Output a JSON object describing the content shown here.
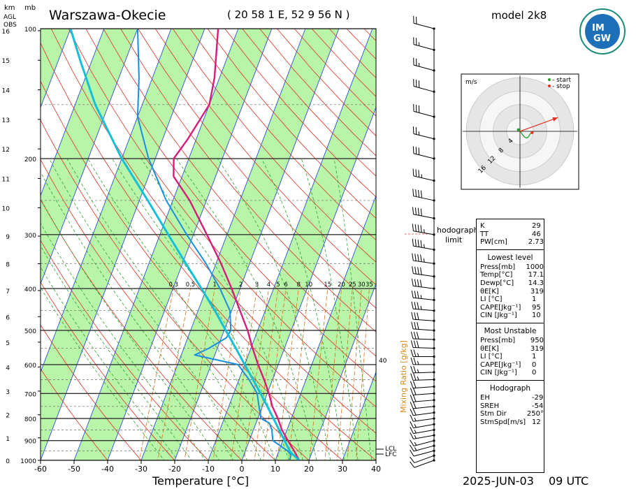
{
  "header": {
    "station": "Warszawa-Okecie",
    "coords": "( 20 58 1 E, 52 9 56 N )",
    "model": "model 2k8",
    "date": "2025-JUN-03",
    "time": "09 UTC",
    "logo_top": "IM",
    "logo_bottom": "GW"
  },
  "colors": {
    "temperature": "#d61c7a",
    "dewpoint": "#1a8fe0",
    "parcel": "#14c0d8",
    "isotherm": "#2b4fd6",
    "dry_adiabat": "#e03020",
    "moist_adiabat": "#2ca02c",
    "mixing_ratio": "#e07010",
    "band_fill": "#b8f5a8"
  },
  "chart_data": {
    "type": "line",
    "title": "",
    "xlabel": "Temperature [°C]",
    "ylabel_left_top": "km",
    "ylabel_left_sub": [
      "AGL",
      "OBS"
    ],
    "ylabel_right": "mb",
    "x_ticks": [
      "-60",
      "-50",
      "-40",
      "-30",
      "-20",
      "-10",
      "0",
      "10",
      "20",
      "30",
      "40"
    ],
    "x_tick_values": [
      -60,
      -50,
      -40,
      -30,
      -20,
      -10,
      0,
      10,
      20,
      30,
      40
    ],
    "pressure_labels": [
      "100",
      "200",
      "300",
      "400",
      "500",
      "600",
      "700",
      "800",
      "900",
      "1000"
    ],
    "pressure_values": [
      100,
      200,
      300,
      400,
      500,
      600,
      700,
      800,
      900,
      1000
    ],
    "km_labels": [
      "0",
      "1",
      "2",
      "3",
      "4",
      "5",
      "6",
      "7",
      "8",
      "9",
      "10",
      "11",
      "12",
      "13",
      "14",
      "15",
      "16"
    ],
    "mixing_ratio_label": "Mixing Ratio [g/kg]",
    "mixing_ratio_ticks": [
      "0.3",
      "0.5",
      "1",
      "2",
      "3",
      "4",
      "5",
      "6",
      "8",
      "10",
      "15",
      "20",
      "25",
      "30",
      "35"
    ],
    "mixing_ratio_values": [
      0.3,
      0.5,
      1,
      2,
      3,
      4,
      5,
      6,
      8,
      10,
      15,
      20,
      25,
      30,
      35
    ],
    "right_axis_value": "40",
    "lcl_label": "LCL",
    "lfc_label": "LFC",
    "series": [
      {
        "name": "temperature",
        "points": [
          [
            1000,
            17.1
          ],
          [
            950,
            14.5
          ],
          [
            900,
            11.5
          ],
          [
            850,
            8.5
          ],
          [
            800,
            6.0
          ],
          [
            750,
            3.0
          ],
          [
            700,
            0.5
          ],
          [
            650,
            -2.5
          ],
          [
            600,
            -6.0
          ],
          [
            550,
            -9.5
          ],
          [
            500,
            -13.0
          ],
          [
            450,
            -17.5
          ],
          [
            400,
            -22.5
          ],
          [
            350,
            -28.5
          ],
          [
            300,
            -36.0
          ],
          [
            250,
            -45.0
          ],
          [
            220,
            -52.5
          ],
          [
            200,
            -54.5
          ],
          [
            180,
            -52.5
          ],
          [
            150,
            -50.0
          ],
          [
            130,
            -51.5
          ],
          [
            100,
            -56.0
          ]
        ]
      },
      {
        "name": "dewpoint",
        "points": [
          [
            1000,
            14.3
          ],
          [
            970,
            14.0
          ],
          [
            950,
            12.5
          ],
          [
            900,
            7.0
          ],
          [
            850,
            5.5
          ],
          [
            820,
            4.0
          ],
          [
            800,
            1.0
          ],
          [
            750,
            -1.0
          ],
          [
            700,
            -3.0
          ],
          [
            650,
            -7.0
          ],
          [
            600,
            -12.0
          ],
          [
            570,
            -26.0
          ],
          [
            550,
            -22.5
          ],
          [
            520,
            -18.5
          ],
          [
            500,
            -18.0
          ],
          [
            450,
            -20.5
          ],
          [
            400,
            -26.0
          ],
          [
            350,
            -33.0
          ],
          [
            300,
            -42.0
          ],
          [
            250,
            -52.0
          ],
          [
            200,
            -62.0
          ],
          [
            160,
            -70.0
          ],
          [
            130,
            -74.0
          ],
          [
            100,
            -80.0
          ]
        ]
      },
      {
        "name": "parcel",
        "points": [
          [
            1000,
            17.1
          ],
          [
            960,
            13.8
          ],
          [
            950,
            13.2
          ],
          [
            900,
            10.5
          ],
          [
            850,
            7.7
          ],
          [
            800,
            4.7
          ],
          [
            750,
            1.5
          ],
          [
            700,
            -2.0
          ],
          [
            650,
            -5.8
          ],
          [
            600,
            -10.0
          ],
          [
            550,
            -14.5
          ],
          [
            500,
            -19.5
          ],
          [
            450,
            -25.0
          ],
          [
            400,
            -31.5
          ],
          [
            350,
            -39.0
          ],
          [
            300,
            -47.5
          ],
          [
            250,
            -57.5
          ],
          [
            200,
            -70.0
          ],
          [
            150,
            -84.0
          ],
          [
            120,
            -93.0
          ],
          [
            100,
            -100.0
          ]
        ]
      }
    ],
    "wind_barbs": [
      {
        "p": 1000,
        "dir": 250,
        "kt": 10
      },
      {
        "p": 975,
        "dir": 250,
        "kt": 12
      },
      {
        "p": 950,
        "dir": 255,
        "kt": 14
      },
      {
        "p": 925,
        "dir": 255,
        "kt": 15
      },
      {
        "p": 900,
        "dir": 255,
        "kt": 16
      },
      {
        "p": 875,
        "dir": 260,
        "kt": 17
      },
      {
        "p": 850,
        "dir": 260,
        "kt": 18
      },
      {
        "p": 825,
        "dir": 260,
        "kt": 18
      },
      {
        "p": 800,
        "dir": 262,
        "kt": 19
      },
      {
        "p": 775,
        "dir": 262,
        "kt": 20
      },
      {
        "p": 750,
        "dir": 264,
        "kt": 21
      },
      {
        "p": 725,
        "dir": 265,
        "kt": 22
      },
      {
        "p": 700,
        "dir": 266,
        "kt": 23
      },
      {
        "p": 675,
        "dir": 266,
        "kt": 24
      },
      {
        "p": 650,
        "dir": 268,
        "kt": 25
      },
      {
        "p": 625,
        "dir": 268,
        "kt": 26
      },
      {
        "p": 600,
        "dir": 270,
        "kt": 27
      },
      {
        "p": 575,
        "dir": 270,
        "kt": 28
      },
      {
        "p": 550,
        "dir": 272,
        "kt": 30
      },
      {
        "p": 525,
        "dir": 272,
        "kt": 31
      },
      {
        "p": 500,
        "dir": 274,
        "kt": 33
      },
      {
        "p": 475,
        "dir": 274,
        "kt": 34
      },
      {
        "p": 450,
        "dir": 275,
        "kt": 36
      },
      {
        "p": 425,
        "dir": 276,
        "kt": 38
      },
      {
        "p": 400,
        "dir": 277,
        "kt": 40
      },
      {
        "p": 375,
        "dir": 278,
        "kt": 42
      },
      {
        "p": 350,
        "dir": 278,
        "kt": 45
      },
      {
        "p": 325,
        "dir": 280,
        "kt": 46
      },
      {
        "p": 300,
        "dir": 280,
        "kt": 45
      },
      {
        "p": 275,
        "dir": 281,
        "kt": 44
      },
      {
        "p": 250,
        "dir": 282,
        "kt": 42
      },
      {
        "p": 225,
        "dir": 283,
        "kt": 38
      },
      {
        "p": 200,
        "dir": 284,
        "kt": 32
      },
      {
        "p": 180,
        "dir": 284,
        "kt": 28
      },
      {
        "p": 160,
        "dir": 285,
        "kt": 30
      },
      {
        "p": 140,
        "dir": 285,
        "kt": 32
      },
      {
        "p": 125,
        "dir": 285,
        "kt": 28
      },
      {
        "p": 112,
        "dir": 285,
        "kt": 25
      },
      {
        "p": 100,
        "dir": 285,
        "kt": 20
      }
    ],
    "hodograph": {
      "units": "m/s",
      "ring_labels": [
        "4",
        "8",
        "12",
        "16"
      ],
      "ring_values": [
        4,
        8,
        12,
        16
      ],
      "legend_start": "- start",
      "legend_stop": "- stop",
      "trace": [
        [
          -0.5,
          0.5
        ],
        [
          0.0,
          0.2
        ],
        [
          0.6,
          -0.8
        ],
        [
          1.2,
          -1.6
        ],
        [
          2.0,
          -2.0
        ],
        [
          2.6,
          -1.6
        ],
        [
          3.0,
          -0.8
        ],
        [
          3.6,
          -0.4
        ]
      ],
      "storm_motion": [
        11.3,
        4.1
      ]
    },
    "hodograph_limit_label": "hodograph limit"
  },
  "indices": {
    "top": [
      {
        "label": "K",
        "value": "29"
      },
      {
        "label": "TT",
        "value": "46"
      },
      {
        "label": "PW[cm]",
        "value": "2.73"
      }
    ],
    "lowest": {
      "title": "Lowest level",
      "rows": [
        {
          "label": "Press[mb]",
          "value": "1000"
        },
        {
          "label": "Temp[°C]",
          "value": "17.1"
        },
        {
          "label": "Dewp[°C]",
          "value": "14.3"
        },
        {
          "label": "θE[K]",
          "value": "319"
        },
        {
          "label": "LI [°C]",
          "value": "1"
        },
        {
          "label": "CAPE[Jkg⁻¹]",
          "value": "95"
        },
        {
          "label": "CIN [Jkg⁻¹]",
          "value": "10"
        }
      ]
    },
    "unstable": {
      "title": "Most Unstable",
      "rows": [
        {
          "label": "Press[mb]",
          "value": "950"
        },
        {
          "label": "θE[K]",
          "value": "319"
        },
        {
          "label": "LI [°C]",
          "value": "1"
        },
        {
          "label": "CAPE[Jkg⁻¹]",
          "value": "0"
        },
        {
          "label": "CIN [Jkg⁻¹]",
          "value": "0"
        }
      ]
    },
    "hodo": {
      "title": "Hodograph",
      "rows": [
        {
          "label": "EH",
          "value": "-29"
        },
        {
          "label": "SREH",
          "value": "-54"
        },
        {
          "label": "Stm Dir",
          "value": "250°"
        },
        {
          "label": "StmSpd[m/s]",
          "value": "12"
        }
      ]
    }
  }
}
